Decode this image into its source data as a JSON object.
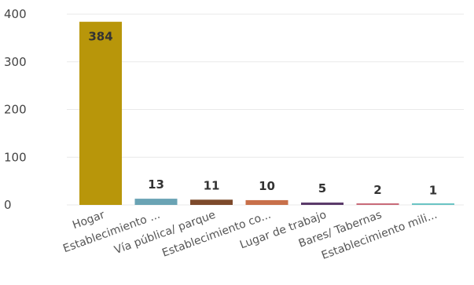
{
  "chart_data": {
    "type": "bar",
    "categories": [
      "Hogar",
      "Establecimiento ...",
      "Vía pública/ parque",
      "Establecimiento co...",
      "Lugar de trabajo",
      "Bares/ Tabernas",
      "Establecimiento mili..."
    ],
    "values": [
      384,
      13,
      11,
      10,
      5,
      2,
      1
    ],
    "colors": [
      "#b8960a",
      "#6aa3b4",
      "#7d4a2b",
      "#c8704a",
      "#5a3a6a",
      "#c86a78",
      "#6ac4c4"
    ],
    "data_labels": [
      "384",
      "13",
      "11",
      "10",
      "5",
      "2",
      "1"
    ],
    "ylim": [
      0,
      400
    ],
    "yticks": [
      "0",
      "100",
      "200",
      "300",
      "400"
    ],
    "ytick_values": [
      0,
      100,
      200,
      300,
      400
    ],
    "grid": true,
    "title": "",
    "xlabel": "",
    "ylabel": ""
  }
}
